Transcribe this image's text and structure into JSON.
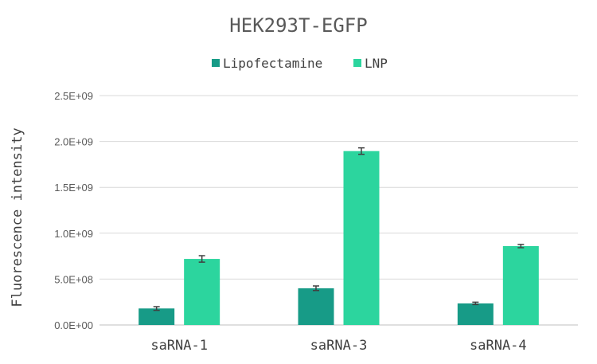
{
  "chart_data": {
    "type": "bar",
    "title": "HEK293T-EGFP",
    "xlabel": "",
    "ylabel": "Fluorescence intensity",
    "categories": [
      "saRNA-1",
      "saRNA-3",
      "saRNA-4"
    ],
    "series": [
      {
        "name": "Lipofectamine",
        "color": "#179B87",
        "values": [
          180000000,
          400000000,
          235000000
        ],
        "errors": [
          20000000,
          25000000,
          13000000
        ]
      },
      {
        "name": "LNP",
        "color": "#2CD59E",
        "values": [
          720000000,
          1895000000,
          860000000
        ],
        "errors": [
          35000000,
          35000000,
          18000000
        ]
      }
    ],
    "ylim": [
      0,
      2500000000
    ],
    "yticks": [
      0,
      500000000,
      1000000000,
      1500000000,
      2000000000,
      2500000000
    ],
    "ytick_labels": [
      "0.0E+00",
      "5.0E+08",
      "1.0E+09",
      "1.5E+09",
      "2.0E+09",
      "2.5E+09"
    ],
    "grid": true,
    "legend_position": "top"
  }
}
